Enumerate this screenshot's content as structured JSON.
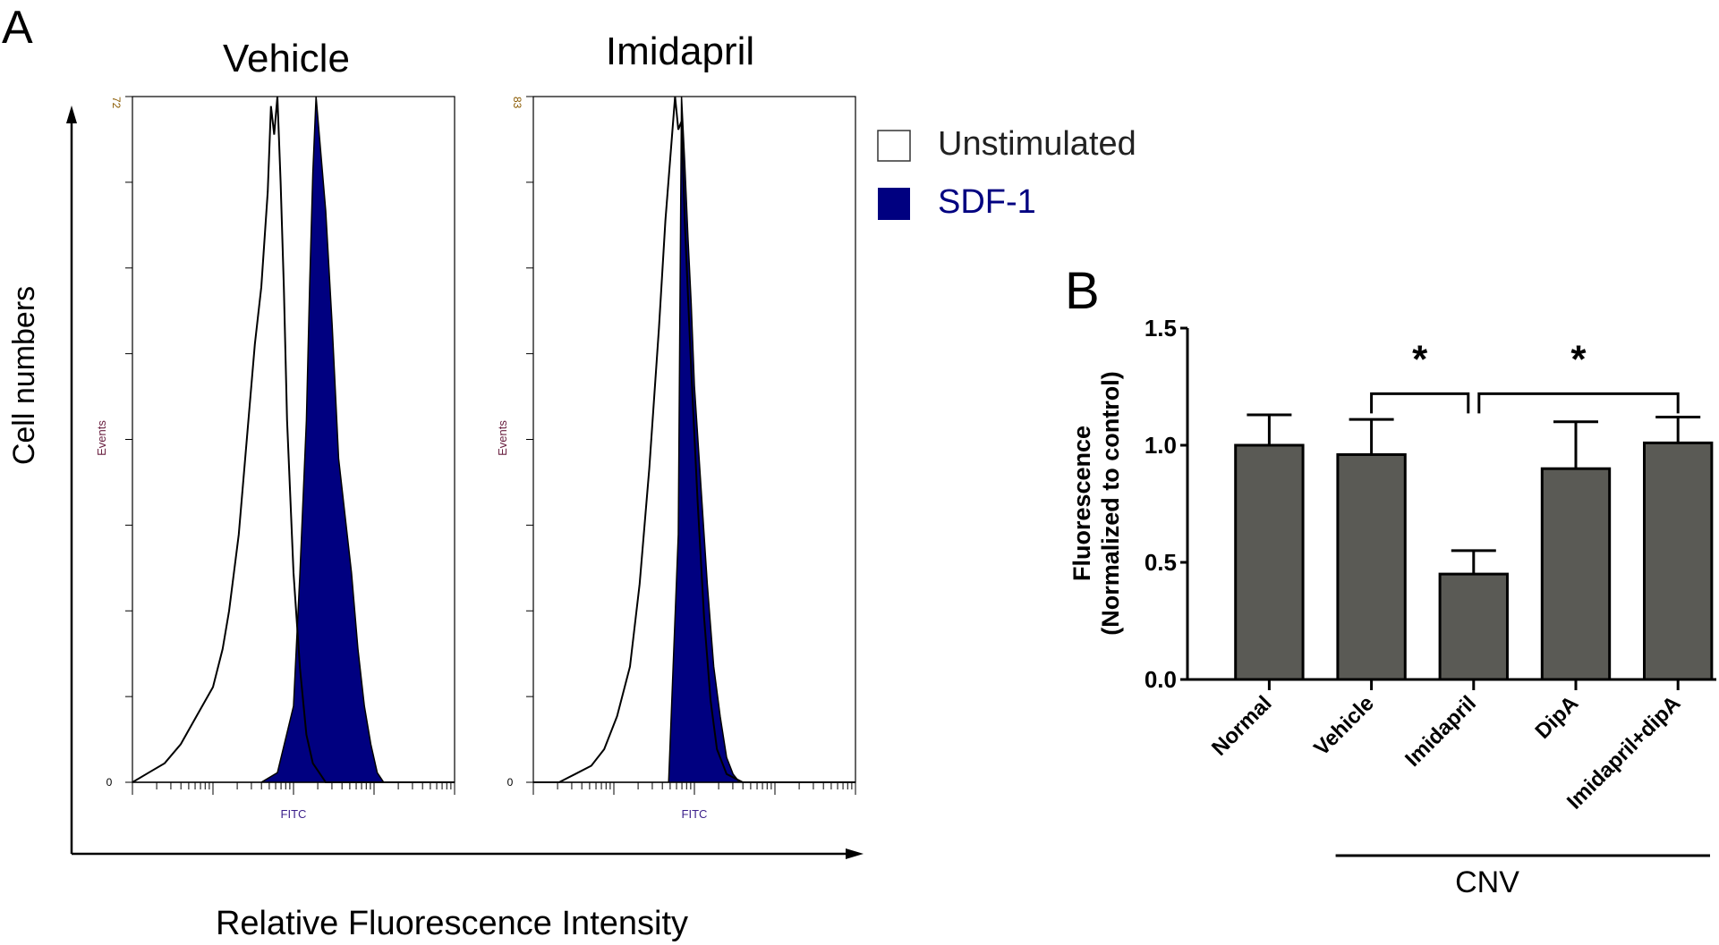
{
  "panel_a": {
    "label": "A",
    "y_axis_label": "Cell numbers",
    "x_axis_label": "Relative Fluorescence Intensity",
    "legend": [
      {
        "label": "Unstimulated",
        "color": "#ffffff",
        "text_color": "#222222"
      },
      {
        "label": "SDF-1",
        "color": "#000080",
        "text_color": "#000080"
      }
    ]
  },
  "panel_b": {
    "label": "B",
    "group_label": "CNV"
  },
  "chart_data": [
    {
      "type": "area",
      "title": "Vehicle",
      "xlabel": "FITC",
      "ylabel": "Events",
      "x_scale": "log (4 decades)",
      "ylim": [
        0,
        72
      ],
      "y_tick_labels": [
        "0",
        "72"
      ],
      "series": [
        {
          "name": "Unstimulated",
          "fill": "none",
          "stroke": "#000000",
          "x": [
            0.0,
            0.05,
            0.1,
            0.15,
            0.2,
            0.25,
            0.28,
            0.3,
            0.33,
            0.36,
            0.38,
            0.4,
            0.42,
            0.43,
            0.44,
            0.45,
            0.46,
            0.47,
            0.48,
            0.49,
            0.5,
            0.52,
            0.54,
            0.56,
            0.58,
            0.6,
            0.65,
            1.0
          ],
          "y": [
            0,
            1,
            2,
            4,
            7,
            10,
            14,
            18,
            26,
            38,
            46,
            52,
            62,
            71,
            68,
            72,
            63,
            52,
            38,
            30,
            22,
            12,
            5,
            2,
            1,
            0,
            0,
            0
          ]
        },
        {
          "name": "SDF-1",
          "fill": "#000080",
          "stroke": "#000000",
          "x": [
            0.0,
            0.4,
            0.45,
            0.5,
            0.52,
            0.54,
            0.55,
            0.56,
            0.57,
            0.58,
            0.6,
            0.62,
            0.64,
            0.66,
            0.68,
            0.7,
            0.72,
            0.74,
            0.76,
            0.78,
            1.0
          ],
          "y": [
            0,
            0,
            1,
            8,
            22,
            38,
            52,
            64,
            72,
            68,
            60,
            48,
            34,
            28,
            22,
            14,
            8,
            4,
            1,
            0,
            0
          ]
        }
      ]
    },
    {
      "type": "area",
      "title": "Imidapril",
      "xlabel": "FITC",
      "ylabel": "Events",
      "x_scale": "log (4 decades)",
      "ylim": [
        0,
        83
      ],
      "y_tick_labels": [
        "0",
        "83"
      ],
      "series": [
        {
          "name": "Unstimulated",
          "fill": "none",
          "stroke": "#000000",
          "x": [
            0.0,
            0.08,
            0.13,
            0.18,
            0.22,
            0.26,
            0.3,
            0.33,
            0.36,
            0.39,
            0.41,
            0.43,
            0.44,
            0.45,
            0.46,
            0.47,
            0.49,
            0.51,
            0.53,
            0.55,
            0.57,
            0.6,
            0.65,
            1.0
          ],
          "y": [
            0,
            0,
            1,
            2,
            4,
            8,
            14,
            24,
            38,
            55,
            68,
            78,
            83,
            79,
            80,
            68,
            50,
            34,
            20,
            10,
            4,
            1,
            0,
            0
          ]
        },
        {
          "name": "SDF-1",
          "fill": "#000080",
          "stroke": "#000000",
          "x": [
            0.0,
            0.42,
            0.45,
            0.46,
            0.47,
            0.48,
            0.49,
            0.5,
            0.52,
            0.54,
            0.56,
            0.58,
            0.6,
            0.62,
            0.64,
            1.0
          ],
          "y": [
            0,
            0,
            30,
            83,
            75,
            66,
            58,
            48,
            36,
            24,
            14,
            8,
            3,
            1,
            0,
            0
          ]
        }
      ]
    },
    {
      "type": "bar",
      "title": "",
      "ylabel": "Fluorescence\n(Normalized to control)",
      "ylabel_lines": [
        "Fluorescence",
        "(Normalized to control)"
      ],
      "xlabel": "",
      "categories": [
        "Normal",
        "Vehicle",
        "Imidapril",
        "DipA",
        "Imidapril+dipA"
      ],
      "values": [
        1.0,
        0.96,
        0.45,
        0.9,
        1.01
      ],
      "error_upper": [
        0.13,
        0.15,
        0.1,
        0.2,
        0.11
      ],
      "ylim": [
        0,
        1.5
      ],
      "yticks": [
        0.0,
        0.5,
        1.0,
        1.5
      ],
      "ytick_labels": [
        "0.0",
        "0.5",
        "1.0",
        "1.5"
      ],
      "bar_color": "#5a5a55",
      "grid": false,
      "significance": [
        {
          "from": "Vehicle",
          "to": "Imidapril",
          "label": "*"
        },
        {
          "from": "Imidapril",
          "to": "Imidapril+dipA",
          "label": "*"
        }
      ],
      "group_bracket": {
        "label": "CNV",
        "from": "Vehicle",
        "to": "Imidapril+dipA"
      }
    }
  ]
}
